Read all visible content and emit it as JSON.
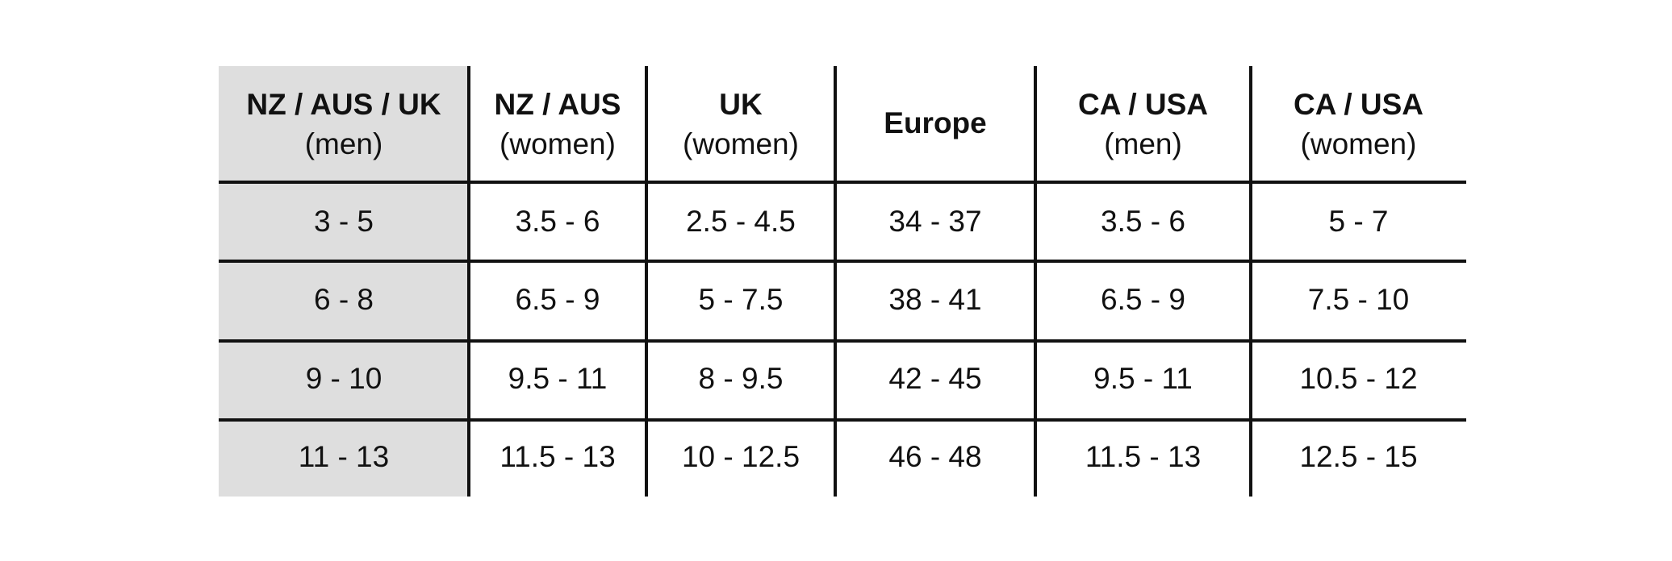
{
  "table": {
    "headers": [
      {
        "title": "NZ / AUS / UK",
        "subtitle": "(men)"
      },
      {
        "title": "NZ / AUS",
        "subtitle": "(women)"
      },
      {
        "title": "UK",
        "subtitle": "(women)"
      },
      {
        "title": "Europe"
      },
      {
        "title": "CA / USA",
        "subtitle": "(men)"
      },
      {
        "title": "CA / USA",
        "subtitle": "(women)"
      }
    ],
    "rows": [
      [
        "3 - 5",
        "3.5 - 6",
        "2.5 - 4.5",
        "34 - 37",
        "3.5 - 6",
        "5 - 7"
      ],
      [
        "6 - 8",
        "6.5 - 9",
        "5 - 7.5",
        "38 - 41",
        "6.5 - 9",
        "7.5 - 10"
      ],
      [
        "9 - 10",
        "9.5 - 11",
        "8 - 9.5",
        "42 - 45",
        "9.5 - 11",
        "10.5 - 12"
      ],
      [
        "11 - 13",
        "11.5 - 13",
        "10 - 12.5",
        "46 - 48",
        "11.5 - 13",
        "12.5 - 15"
      ]
    ]
  }
}
